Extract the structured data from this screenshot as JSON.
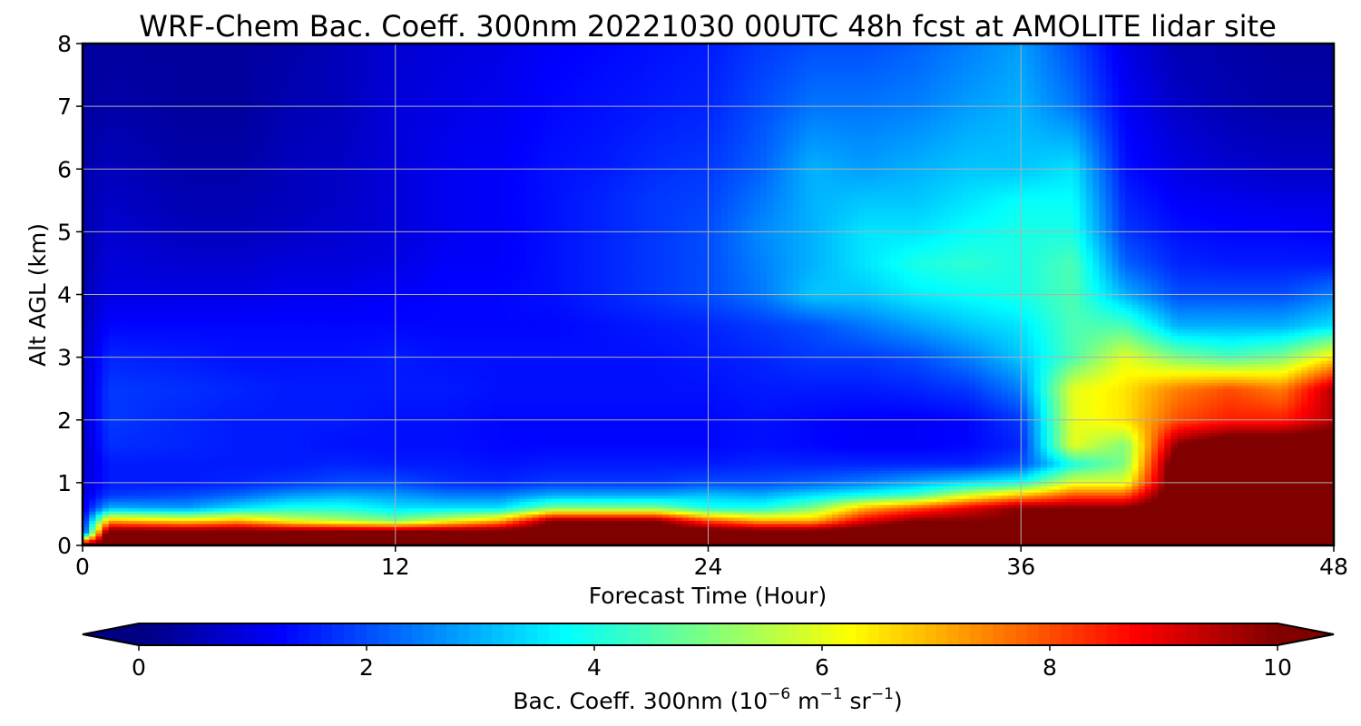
{
  "chart_data": {
    "type": "heatmap",
    "title": "WRF-Chem Bac. Coeff. 300nm  20221030 00UTC 48h fcst at AMOLITE lidar site",
    "xlabel": "Forecast Time (Hour)",
    "ylabel": "Alt AGL (km)",
    "xlim": [
      0,
      48
    ],
    "ylim": [
      0,
      8
    ],
    "xticks": [
      0,
      12,
      24,
      36,
      48
    ],
    "yticks": [
      0,
      1,
      2,
      3,
      4,
      5,
      6,
      7,
      8
    ],
    "grid": true,
    "colormap": "jet",
    "colorbar": {
      "orientation": "horizontal",
      "placement": "bottom",
      "label_main": "Bac. Coeff. 300nm  (10",
      "label_exp1": "−6",
      "label_mid": " m",
      "label_exp2": "−1",
      "label_mid2": " sr",
      "label_exp3": "−1",
      "label_end": ")",
      "vmin": 0,
      "vmax": 10,
      "ticks": [
        0,
        2,
        4,
        6,
        8,
        10
      ],
      "extend": "both"
    },
    "x": [
      0,
      1,
      4,
      6,
      8,
      10,
      12,
      14,
      16,
      18,
      20,
      22,
      24,
      26,
      28,
      30,
      32,
      34,
      36,
      38,
      40,
      42,
      44,
      46,
      48
    ],
    "y": [
      0,
      0.2,
      0.4,
      0.6,
      0.8,
      1,
      1.3,
      1.6,
      2,
      2.5,
      3,
      3.5,
      4,
      4.5,
      5,
      5.5,
      6,
      7,
      8
    ],
    "values": [
      [
        11,
        11,
        11,
        11,
        11,
        11,
        11,
        11,
        11,
        11,
        11,
        11,
        11,
        11,
        11,
        11,
        11,
        11,
        11,
        11,
        11,
        11,
        11,
        11,
        11
      ],
      [
        1.5,
        11,
        11,
        11,
        11,
        11,
        11,
        11,
        11,
        11,
        11,
        11,
        11,
        11,
        11,
        11,
        11,
        11,
        11,
        11,
        11,
        11,
        11,
        11,
        11
      ],
      [
        1.2,
        7,
        6.5,
        7,
        6,
        5.5,
        5,
        6,
        7,
        10,
        10,
        10,
        8,
        7,
        7,
        9,
        10,
        10,
        10,
        10,
        11,
        11,
        11,
        11,
        11
      ],
      [
        1,
        3,
        2.8,
        3.5,
        4,
        4,
        3.5,
        3.5,
        3.5,
        5,
        5,
        5,
        4,
        4,
        5,
        7,
        8,
        9,
        10,
        10,
        10,
        11,
        11,
        11,
        11
      ],
      [
        0.9,
        1.8,
        2,
        2.3,
        2.8,
        3,
        2.8,
        2.5,
        2.5,
        3,
        3,
        3,
        3.2,
        3,
        3.5,
        4,
        4.5,
        6,
        7,
        8,
        8,
        11,
        11,
        11,
        11
      ],
      [
        0.8,
        1.5,
        1.5,
        1.6,
        1.8,
        2,
        2,
        1.7,
        1.6,
        1.8,
        1.8,
        1.8,
        2,
        2,
        2.2,
        2.5,
        3,
        3.5,
        4,
        6,
        6,
        11,
        11,
        11,
        11
      ],
      [
        0.7,
        1.5,
        1.5,
        1.5,
        1.5,
        1.6,
        1.5,
        1.5,
        1.4,
        1.5,
        1.5,
        1.5,
        1.5,
        1.6,
        1.6,
        1.6,
        1.6,
        1.6,
        2,
        4,
        5,
        11,
        11,
        11,
        11
      ],
      [
        0.7,
        1.7,
        1.6,
        1.5,
        1.5,
        1.4,
        1.4,
        1.4,
        1.3,
        1.3,
        1.3,
        1.3,
        1.3,
        1.4,
        1.3,
        1.2,
        1.2,
        1.3,
        1.6,
        6,
        5,
        10,
        11,
        11,
        11
      ],
      [
        0.7,
        1.8,
        1.6,
        1.5,
        1.5,
        1.5,
        1.4,
        1.4,
        1.3,
        1.3,
        1.3,
        1.3,
        1.3,
        1.4,
        1.3,
        1.2,
        1.2,
        1.3,
        1.8,
        6,
        6.5,
        8,
        8.5,
        8.5,
        9.5
      ],
      [
        0.7,
        1.8,
        1.7,
        1.6,
        1.5,
        1.5,
        1.5,
        1.5,
        1.4,
        1.4,
        1.4,
        1.4,
        1.4,
        1.5,
        1.5,
        1.5,
        1.6,
        1.8,
        2.5,
        6,
        6.5,
        7.5,
        8,
        7.5,
        9.5
      ],
      [
        0.7,
        1.6,
        1.5,
        1.4,
        1.4,
        1.4,
        1.5,
        1.4,
        1.4,
        1.4,
        1.4,
        1.4,
        1.5,
        1.6,
        1.8,
        1.8,
        2,
        2.5,
        3.2,
        4.5,
        6,
        5,
        4.5,
        5,
        6.5
      ],
      [
        0.6,
        1.3,
        1.3,
        1.3,
        1.3,
        1.3,
        1.3,
        1.3,
        1.3,
        1.3,
        1.4,
        1.5,
        1.6,
        1.8,
        2,
        2.4,
        2.8,
        3.2,
        3.5,
        4.5,
        4.5,
        3,
        3,
        3,
        3.5
      ],
      [
        0.5,
        1.0,
        1.0,
        1.0,
        1.1,
        1.1,
        1.2,
        1.3,
        1.3,
        1.4,
        1.6,
        1.8,
        2,
        2.4,
        3.2,
        3.2,
        3.6,
        3.8,
        4,
        4.5,
        3,
        2,
        2,
        2,
        2.5
      ],
      [
        0.4,
        0.9,
        0.8,
        0.8,
        0.9,
        0.9,
        1,
        1.2,
        1.2,
        1.4,
        1.6,
        1.8,
        2,
        2.5,
        3,
        3.5,
        4,
        4.2,
        4,
        4.5,
        2.2,
        1.6,
        1.5,
        1.5,
        1.5
      ],
      [
        0.4,
        0.8,
        0.6,
        0.6,
        0.7,
        0.8,
        0.9,
        1.1,
        1.2,
        1.4,
        1.6,
        1.8,
        2,
        2.6,
        3,
        3.5,
        3.5,
        3.8,
        4,
        4,
        1.8,
        1.4,
        1.3,
        1.3,
        1.2
      ],
      [
        0.4,
        0.7,
        0.5,
        0.5,
        0.6,
        0.7,
        0.9,
        1.1,
        1.2,
        1.4,
        1.6,
        1.8,
        1.9,
        2.4,
        3,
        3.2,
        3.2,
        3.5,
        3.8,
        3.8,
        1.6,
        1.2,
        1.1,
        1,
        1
      ],
      [
        0.4,
        0.6,
        0.4,
        0.4,
        0.6,
        0.7,
        0.9,
        1.1,
        1.2,
        1.4,
        1.5,
        1.7,
        1.8,
        2.2,
        3,
        2.8,
        3,
        3.2,
        3.2,
        3.5,
        1.4,
        1,
        0.8,
        0.7,
        0.7
      ],
      [
        0.3,
        0.4,
        0.3,
        0.3,
        0.5,
        0.6,
        0.9,
        1.0,
        1.1,
        1.3,
        1.4,
        1.5,
        1.6,
        2,
        2.4,
        2.4,
        2.5,
        2.8,
        3,
        2.4,
        1.2,
        0.7,
        0.5,
        0.4,
        0.4
      ],
      [
        0.3,
        0.3,
        0.3,
        0.3,
        0.4,
        0.6,
        0.8,
        0.9,
        1.0,
        1.2,
        1.3,
        1.4,
        1.5,
        1.8,
        2,
        2,
        2.2,
        2.5,
        2.8,
        2,
        1,
        0.5,
        0.4,
        0.3,
        0.3
      ]
    ]
  }
}
